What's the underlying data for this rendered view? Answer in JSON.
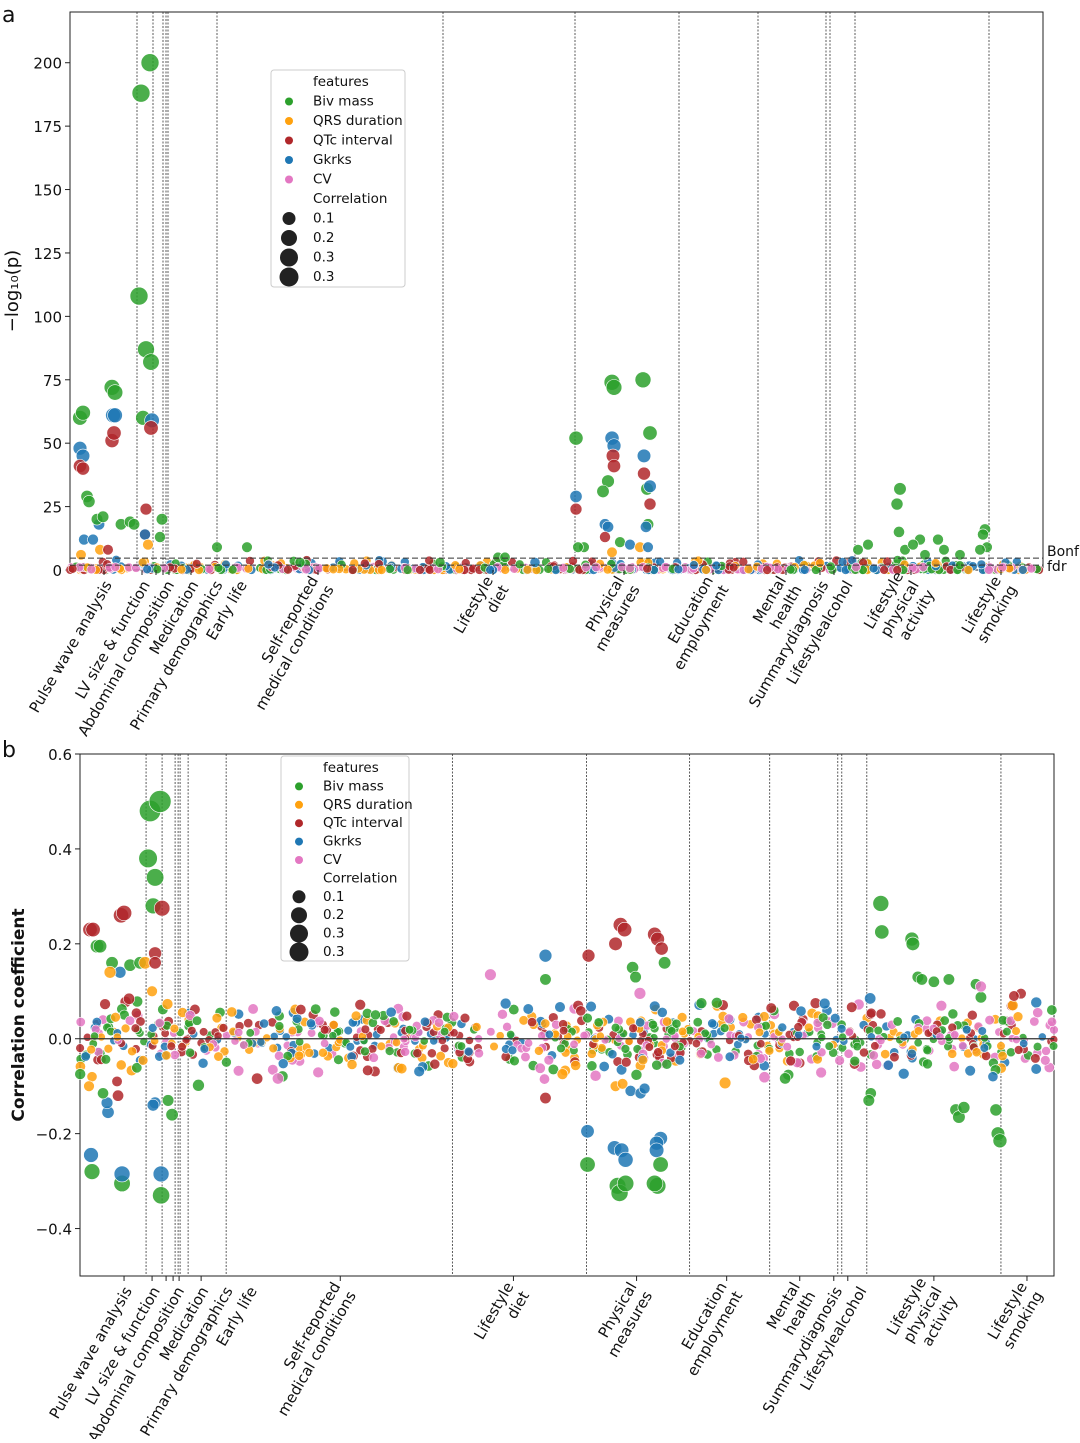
{
  "colors": {
    "Biv mass": "#2ca02c",
    "QRS duration": "#ffa10e",
    "QTc interval": "#b0272a",
    "Gkrks": "#1f77b4",
    "CV": "#e377c2"
  },
  "chart_data": [
    {
      "panel": "a",
      "type": "scatter",
      "ylabel": "−log₁₀(p)",
      "xlabel": "",
      "xlim": [
        0,
        973
      ],
      "ylim": [
        0,
        220
      ],
      "yticks": [
        0,
        25,
        50,
        75,
        100,
        125,
        150,
        175,
        200
      ],
      "ytick_labels": [
        "0",
        "25",
        "50",
        "75",
        "100",
        "125",
        "150",
        "175",
        "200"
      ],
      "category_boundaries": [
        67,
        83,
        93,
        96,
        98,
        147,
        373,
        505,
        609,
        688,
        756,
        760,
        785,
        919
      ],
      "categories": [
        {
          "x": 34,
          "label": [
            "Pulse wave analysis"
          ]
        },
        {
          "x": 72,
          "label": [
            "LV size & function"
          ]
        },
        {
          "x": 86,
          "label": [
            "Abdominal composition"
          ]
        },
        {
          "x": 93,
          "label": [
            "Medication"
          ]
        },
        {
          "x": 99,
          "label": [
            "Primary demographics"
          ]
        },
        {
          "x": 121,
          "label": [
            "Early life"
          ]
        },
        {
          "x": 248,
          "label": [
            "Self-reported",
            "medical conditions"
          ]
        },
        {
          "x": 423,
          "label": [
            "Lifestyle",
            "diet"
          ]
        },
        {
          "x": 554,
          "label": [
            "Physical",
            "measures"
          ]
        },
        {
          "x": 643,
          "label": [
            "Education",
            "employment"
          ]
        },
        {
          "x": 716,
          "label": [
            "Mental",
            "health"
          ]
        },
        {
          "x": 750,
          "label": [
            "Summarydiagnosis"
          ]
        },
        {
          "x": 764,
          "label": [
            "Lifestylealcohol"
          ]
        },
        {
          "x": 841,
          "label": [
            "Lifestyle",
            "physical",
            "activity"
          ]
        },
        {
          "x": 931,
          "label": [
            "Lifestyle",
            "smoking"
          ]
        }
      ],
      "threshold_lines": [
        {
          "label": "Bonf",
          "y": 4.7
        },
        {
          "label": "fdr",
          "y": 1.9
        }
      ],
      "legend": {
        "title": "features",
        "entries": [
          "Biv mass",
          "QRS duration",
          "QTc interval",
          "Gkrks",
          "CV"
        ],
        "size_title": "Correlation",
        "size_entries": [
          "0.1",
          "0.2",
          "0.3",
          "0.3"
        ],
        "placement": "upper-left-center"
      },
      "points": [
        [
          10,
          60,
          "G"
        ],
        [
          13,
          62,
          "G"
        ],
        [
          10,
          48,
          "B"
        ],
        [
          13,
          45,
          "B"
        ],
        [
          10,
          41,
          "R"
        ],
        [
          13,
          40,
          "R"
        ],
        [
          17,
          29,
          "G"
        ],
        [
          19,
          27,
          "G"
        ],
        [
          42,
          72,
          "G"
        ],
        [
          45,
          70,
          "G"
        ],
        [
          43,
          61,
          "B"
        ],
        [
          45,
          61,
          "B"
        ],
        [
          42,
          51,
          "R"
        ],
        [
          44,
          54,
          "R"
        ],
        [
          71,
          188,
          "G"
        ],
        [
          80,
          200,
          "G"
        ],
        [
          69,
          108,
          "G"
        ],
        [
          76,
          87,
          "G"
        ],
        [
          81,
          82,
          "G"
        ],
        [
          73,
          60,
          "G"
        ],
        [
          82,
          59,
          "B"
        ],
        [
          81,
          56,
          "R"
        ],
        [
          76,
          24,
          "R"
        ],
        [
          92,
          20,
          "G"
        ],
        [
          29,
          18,
          "B"
        ],
        [
          27,
          20,
          "G"
        ],
        [
          33,
          21,
          "G"
        ],
        [
          51,
          18,
          "G"
        ],
        [
          60,
          19,
          "G"
        ],
        [
          64,
          18,
          "G"
        ],
        [
          75,
          14,
          "R"
        ],
        [
          75,
          14,
          "B"
        ],
        [
          90,
          13,
          "G"
        ],
        [
          78,
          10,
          "O"
        ],
        [
          14,
          12,
          "B"
        ],
        [
          23,
          12,
          "B"
        ],
        [
          30,
          8,
          "O"
        ],
        [
          38,
          8,
          "R"
        ],
        [
          11,
          6,
          "O"
        ],
        [
          147,
          9,
          "G"
        ],
        [
          177,
          9,
          "G"
        ],
        [
          506,
          52,
          "G"
        ],
        [
          506,
          29,
          "B"
        ],
        [
          506,
          24,
          "R"
        ],
        [
          514,
          9,
          "G"
        ],
        [
          508,
          9,
          "G"
        ],
        [
          542,
          74,
          "G"
        ],
        [
          544,
          72,
          "G"
        ],
        [
          573,
          75,
          "G"
        ],
        [
          580,
          54,
          "G"
        ],
        [
          542,
          52,
          "B"
        ],
        [
          544,
          49,
          "B"
        ],
        [
          574,
          45,
          "B"
        ],
        [
          543,
          45,
          "R"
        ],
        [
          544,
          41,
          "R"
        ],
        [
          574,
          38,
          "R"
        ],
        [
          538,
          35,
          "G"
        ],
        [
          533,
          31,
          "G"
        ],
        [
          577,
          32,
          "G"
        ],
        [
          580,
          33,
          "B"
        ],
        [
          580,
          26,
          "R"
        ],
        [
          535,
          18,
          "B"
        ],
        [
          538,
          17,
          "B"
        ],
        [
          578,
          18,
          "G"
        ],
        [
          576,
          17,
          "B"
        ],
        [
          535,
          13,
          "R"
        ],
        [
          550,
          11,
          "G"
        ],
        [
          560,
          10,
          "B"
        ],
        [
          570,
          9,
          "O"
        ],
        [
          578,
          9,
          "B"
        ],
        [
          542,
          7,
          "O"
        ],
        [
          830,
          32,
          "G"
        ],
        [
          827,
          26,
          "G"
        ],
        [
          829,
          15,
          "G"
        ],
        [
          798,
          10,
          "G"
        ],
        [
          788,
          8,
          "G"
        ],
        [
          835,
          8,
          "G"
        ],
        [
          850,
          12,
          "G"
        ],
        [
          868,
          12,
          "G"
        ],
        [
          874,
          8,
          "G"
        ],
        [
          890,
          6,
          "G"
        ],
        [
          915,
          16,
          "G"
        ],
        [
          913,
          14,
          "G"
        ],
        [
          917,
          9,
          "G"
        ],
        [
          910,
          8,
          "G"
        ],
        [
          843,
          10,
          "G"
        ],
        [
          855,
          6,
          "G"
        ],
        [
          428,
          5,
          "G"
        ],
        [
          435,
          5,
          "G"
        ],
        [
          465,
          3,
          "B"
        ],
        [
          230,
          3,
          "G"
        ],
        [
          370,
          3,
          "G"
        ]
      ],
      "filler": {
        "count": 700,
        "ymax": 4,
        "seed": 7
      }
    },
    {
      "panel": "b",
      "type": "scatter",
      "ylabel": "Correlation coefficient",
      "xlabel": "",
      "xlim": [
        0,
        973
      ],
      "ylim": [
        -0.5,
        0.6
      ],
      "yticks": [
        -0.4,
        -0.2,
        0.0,
        0.2,
        0.4,
        0.6
      ],
      "ytick_labels": [
        "−0.4",
        "−0.2",
        "0.0",
        "0.2",
        "0.4",
        "0.6"
      ],
      "category_boundaries": [
        66,
        82,
        95,
        98,
        100,
        108,
        146,
        372,
        506,
        609,
        689,
        757,
        761,
        786,
        920
      ],
      "categories": [
        {
          "x": 44,
          "label": [
            "Pulse wave analysis"
          ]
        },
        {
          "x": 72,
          "label": [
            "LV size & function"
          ]
        },
        {
          "x": 86,
          "label": [
            "Abdominal composition"
          ]
        },
        {
          "x": 93,
          "label": [
            "Medication"
          ]
        },
        {
          "x": 99,
          "label": [
            "Primary demographics"
          ]
        },
        {
          "x": 121,
          "label": [
            "Early life"
          ]
        },
        {
          "x": 260,
          "label": [
            "Self-reported",
            "medical conditions"
          ]
        },
        {
          "x": 433,
          "label": [
            "Lifestyle",
            "diet"
          ]
        },
        {
          "x": 556,
          "label": [
            "Physical",
            "measures"
          ]
        },
        {
          "x": 646,
          "label": [
            "Education",
            "employment"
          ]
        },
        {
          "x": 719,
          "label": [
            "Mental",
            "health"
          ]
        },
        {
          "x": 753,
          "label": [
            "Summarydiagnosis"
          ]
        },
        {
          "x": 767,
          "label": [
            "Lifestylealcohol"
          ]
        },
        {
          "x": 853,
          "label": [
            "Lifestyle",
            "physical",
            "activity"
          ]
        },
        {
          "x": 946,
          "label": [
            "Lifestyle",
            "smoking"
          ]
        }
      ],
      "legend": {
        "title": "features",
        "entries": [
          "Biv mass",
          "QRS duration",
          "QTc interval",
          "Gkrks",
          "CV"
        ],
        "size_title": "Correlation",
        "size_entries": [
          "0.1",
          "0.2",
          "0.3",
          "0.3"
        ],
        "placement": "upper-left-center"
      },
      "points": [
        [
          10,
          0.23,
          "R"
        ],
        [
          13,
          0.23,
          "R"
        ],
        [
          17,
          0.195,
          "G"
        ],
        [
          20,
          0.195,
          "G"
        ],
        [
          11,
          -0.245,
          "B"
        ],
        [
          12,
          -0.28,
          "G"
        ],
        [
          42,
          -0.305,
          "G"
        ],
        [
          42,
          -0.285,
          "B"
        ],
        [
          41,
          0.26,
          "R"
        ],
        [
          44,
          0.265,
          "R"
        ],
        [
          32,
          0.16,
          "G"
        ],
        [
          40,
          0.14,
          "B"
        ],
        [
          50,
          0.155,
          "G"
        ],
        [
          60,
          0.16,
          "G"
        ],
        [
          65,
          0.16,
          "O"
        ],
        [
          70,
          0.48,
          "G"
        ],
        [
          80,
          0.5,
          "G"
        ],
        [
          68,
          0.38,
          "G"
        ],
        [
          75,
          0.34,
          "G"
        ],
        [
          73,
          0.28,
          "G"
        ],
        [
          82,
          0.275,
          "R"
        ],
        [
          75,
          0.18,
          "R"
        ],
        [
          75,
          0.16,
          "R"
        ],
        [
          81,
          -0.33,
          "G"
        ],
        [
          81,
          -0.285,
          "B"
        ],
        [
          75,
          -0.135,
          "B"
        ],
        [
          73,
          -0.14,
          "B"
        ],
        [
          88,
          -0.13,
          "G"
        ],
        [
          92,
          -0.16,
          "G"
        ],
        [
          72,
          0.1,
          "O"
        ],
        [
          30,
          0.14,
          "O"
        ],
        [
          28,
          -0.155,
          "B"
        ],
        [
          27,
          -0.135,
          "B"
        ],
        [
          23,
          -0.115,
          "G"
        ],
        [
          38,
          -0.12,
          "R"
        ],
        [
          37,
          -0.09,
          "R"
        ],
        [
          12,
          -0.08,
          "O"
        ],
        [
          9,
          -0.1,
          "O"
        ],
        [
          508,
          0.175,
          "R"
        ],
        [
          507,
          -0.265,
          "G"
        ],
        [
          507,
          -0.195,
          "B"
        ],
        [
          537,
          -0.31,
          "G"
        ],
        [
          539,
          -0.325,
          "G"
        ],
        [
          545,
          -0.305,
          "G"
        ],
        [
          534,
          -0.23,
          "B"
        ],
        [
          541,
          -0.235,
          "B"
        ],
        [
          545,
          -0.255,
          "B"
        ],
        [
          535,
          0.2,
          "R"
        ],
        [
          540,
          0.24,
          "R"
        ],
        [
          544,
          0.23,
          "R"
        ],
        [
          574,
          0.22,
          "R"
        ],
        [
          577,
          0.21,
          "R"
        ],
        [
          581,
          0.19,
          "R"
        ],
        [
          584,
          0.16,
          "G"
        ],
        [
          552,
          0.15,
          "G"
        ],
        [
          555,
          0.13,
          "G"
        ],
        [
          577,
          -0.31,
          "G"
        ],
        [
          574,
          -0.305,
          "G"
        ],
        [
          580,
          -0.21,
          "B"
        ],
        [
          576,
          -0.22,
          "B"
        ],
        [
          576,
          -0.235,
          "B"
        ],
        [
          580,
          -0.265,
          "G"
        ],
        [
          535,
          -0.1,
          "O"
        ],
        [
          542,
          -0.095,
          "O"
        ],
        [
          550,
          -0.11,
          "B"
        ],
        [
          560,
          -0.115,
          "B"
        ],
        [
          564,
          -0.105,
          "B"
        ],
        [
          465,
          0.175,
          "B"
        ],
        [
          410,
          0.135,
          "P"
        ],
        [
          464,
          -0.085,
          "P"
        ],
        [
          465,
          -0.125,
          "R"
        ],
        [
          465,
          0.125,
          "G"
        ],
        [
          800,
          0.285,
          "G"
        ],
        [
          801,
          0.225,
          "G"
        ],
        [
          831,
          0.21,
          "G"
        ],
        [
          832,
          0.2,
          "G"
        ],
        [
          837,
          0.13,
          "G"
        ],
        [
          841,
          0.125,
          "G"
        ],
        [
          868,
          0.125,
          "G"
        ],
        [
          853,
          0.12,
          "G"
        ],
        [
          875,
          -0.15,
          "G"
        ],
        [
          878,
          -0.165,
          "G"
        ],
        [
          883,
          -0.145,
          "G"
        ],
        [
          915,
          -0.15,
          "G"
        ],
        [
          917,
          -0.2,
          "G"
        ],
        [
          919,
          -0.215,
          "G"
        ],
        [
          895,
          0.115,
          "G"
        ],
        [
          900,
          0.11,
          "P"
        ],
        [
          790,
          -0.115,
          "G"
        ],
        [
          788,
          -0.13,
          "G"
        ],
        [
          912,
          -0.08,
          "B"
        ],
        [
          940,
          0.095,
          "R"
        ],
        [
          933,
          0.09,
          "R"
        ]
      ],
      "filler": {
        "count": 900,
        "sd": 0.035,
        "seed": 11
      }
    }
  ],
  "panel_labels": [
    "a",
    "b"
  ]
}
